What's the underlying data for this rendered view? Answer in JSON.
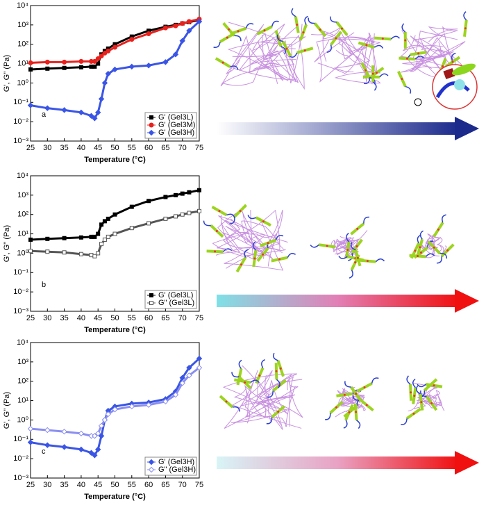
{
  "chart_data": [
    {
      "type": "line",
      "annotation": "a",
      "xlabel": "Temperature (°C)",
      "ylabel": "G', G'' (Pa)",
      "log_y": true,
      "grid": false,
      "legend": "lower right",
      "x": [
        25,
        30,
        35,
        40,
        43,
        44,
        45,
        46,
        47,
        48,
        50,
        55,
        60,
        65,
        68,
        70,
        72,
        75
      ],
      "xlim": [
        25,
        75
      ],
      "xticks": [
        25,
        30,
        35,
        40,
        45,
        50,
        55,
        60,
        65,
        70,
        75
      ],
      "ylim": [
        0.001,
        10000
      ],
      "yticks": [
        {
          "value": 0.001,
          "label": "10⁻³"
        },
        {
          "value": 0.01,
          "label": "10⁻²"
        },
        {
          "value": 0.1,
          "label": "10⁻¹"
        },
        {
          "value": 1,
          "label": "10⁰"
        },
        {
          "value": 10,
          "label": "10¹"
        },
        {
          "value": 100,
          "label": "10²"
        },
        {
          "value": 1000,
          "label": "10³"
        },
        {
          "value": 10000,
          "label": "10⁴"
        }
      ],
      "series": [
        {
          "name": "G' (Gel3L)",
          "color": "#000000",
          "marker": "square",
          "open": false,
          "values": [
            5,
            5.5,
            6,
            6.5,
            7,
            7,
            10,
            30,
            45,
            60,
            100,
            250,
            500,
            800,
            1000,
            1200,
            1400,
            1800
          ]
        },
        {
          "name": "G' (Gel3M)",
          "color": "#e8211d",
          "marker": "circle",
          "open": false,
          "values": [
            11,
            12,
            12,
            13,
            13,
            13,
            18,
            25,
            35,
            45,
            70,
            180,
            350,
            700,
            900,
            1200,
            1500,
            2000
          ]
        },
        {
          "name": "G' (Gel3H)",
          "color": "#3a55e6",
          "marker": "diamond",
          "open": false,
          "values": [
            0.07,
            0.05,
            0.04,
            0.03,
            0.02,
            0.015,
            0.03,
            0.15,
            1,
            3,
            5,
            7,
            8,
            12,
            30,
            150,
            500,
            1500
          ]
        }
      ]
    },
    {
      "type": "line",
      "annotation": "b",
      "xlabel": "Temperature (°C)",
      "ylabel": "G', G'' (Pa)",
      "log_y": true,
      "grid": false,
      "legend": "lower right",
      "x": [
        25,
        30,
        35,
        40,
        43,
        44,
        45,
        46,
        47,
        48,
        50,
        55,
        60,
        65,
        68,
        70,
        72,
        75
      ],
      "xlim": [
        25,
        75
      ],
      "xticks": [
        25,
        30,
        35,
        40,
        45,
        50,
        55,
        60,
        65,
        70,
        75
      ],
      "ylim": [
        0.001,
        10000
      ],
      "yticks": [
        {
          "value": 0.001,
          "label": "10⁻³"
        },
        {
          "value": 0.01,
          "label": "10⁻²"
        },
        {
          "value": 0.1,
          "label": "10⁻¹"
        },
        {
          "value": 1,
          "label": "10⁰"
        },
        {
          "value": 10,
          "label": "10¹"
        },
        {
          "value": 100,
          "label": "10²"
        },
        {
          "value": 1000,
          "label": "10³"
        },
        {
          "value": 10000,
          "label": "10⁴"
        }
      ],
      "series": [
        {
          "name": "G' (Gel3L)",
          "color": "#000000",
          "marker": "square",
          "open": false,
          "values": [
            5,
            5.5,
            6,
            6.5,
            7,
            7,
            10,
            30,
            45,
            60,
            100,
            250,
            500,
            800,
            1000,
            1200,
            1400,
            1800
          ]
        },
        {
          "name": "G\" (Gel3L)",
          "color": "#555555",
          "marker": "square",
          "open": true,
          "values": [
            1.3,
            1.2,
            1.1,
            0.9,
            0.8,
            0.7,
            1,
            3,
            5,
            7,
            10,
            20,
            35,
            60,
            80,
            100,
            120,
            150
          ]
        }
      ]
    },
    {
      "type": "line",
      "annotation": "c",
      "xlabel": "Temperature (°C)",
      "ylabel": "G', G'' (Pa)",
      "log_y": true,
      "grid": false,
      "legend": "lower right",
      "x": [
        25,
        30,
        35,
        40,
        43,
        44,
        45,
        46,
        47,
        48,
        50,
        55,
        60,
        65,
        68,
        70,
        72,
        75
      ],
      "xlim": [
        25,
        75
      ],
      "xticks": [
        25,
        30,
        35,
        40,
        45,
        50,
        55,
        60,
        65,
        70,
        75
      ],
      "ylim": [
        0.001,
        10000
      ],
      "yticks": [
        {
          "value": 0.001,
          "label": "10⁻³"
        },
        {
          "value": 0.01,
          "label": "10⁻²"
        },
        {
          "value": 0.1,
          "label": "10⁻¹"
        },
        {
          "value": 1,
          "label": "10⁰"
        },
        {
          "value": 10,
          "label": "10¹"
        },
        {
          "value": 100,
          "label": "10²"
        },
        {
          "value": 1000,
          "label": "10³"
        },
        {
          "value": 10000,
          "label": "10⁴"
        }
      ],
      "series": [
        {
          "name": "G' (Gel3H)",
          "color": "#3a55e6",
          "marker": "diamond",
          "open": false,
          "values": [
            0.07,
            0.05,
            0.04,
            0.03,
            0.02,
            0.015,
            0.03,
            0.15,
            1,
            3,
            5,
            7,
            8,
            12,
            30,
            150,
            500,
            1500
          ]
        },
        {
          "name": "G\" (Gel3H)",
          "color": "#8a8ef0",
          "marker": "diamond",
          "open": true,
          "values": [
            0.35,
            0.3,
            0.25,
            0.2,
            0.15,
            0.15,
            0.2,
            0.5,
            1,
            2,
            3.5,
            5,
            6,
            9,
            20,
            80,
            200,
            500
          ]
        }
      ]
    }
  ]
}
